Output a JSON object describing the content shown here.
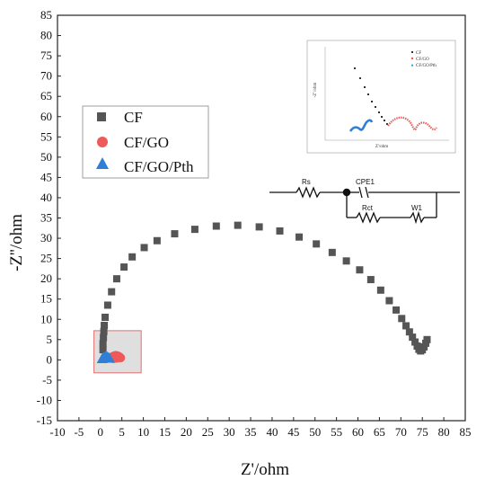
{
  "chart_data": {
    "type": "scatter",
    "xlabel": "Z'/ohm",
    "ylabel": "-Z''/ohm",
    "xlim": [
      -10,
      85
    ],
    "ylim": [
      -15,
      85
    ],
    "xticks": [
      -10,
      -5,
      0,
      5,
      10,
      15,
      20,
      25,
      30,
      35,
      40,
      45,
      50,
      55,
      60,
      65,
      70,
      75,
      80,
      85
    ],
    "yticks": [
      -15,
      -10,
      -5,
      0,
      5,
      10,
      15,
      20,
      25,
      30,
      35,
      40,
      45,
      50,
      55,
      60,
      65,
      70,
      75,
      80,
      85
    ],
    "grid": false,
    "legend_position": "left",
    "series": [
      {
        "name": "CF",
        "marker": "square",
        "color": "#555555",
        "points": [
          [
            0.6,
            2.5
          ],
          [
            0.6,
            4.0
          ],
          [
            0.7,
            5.5
          ],
          [
            0.8,
            7.0
          ],
          [
            0.9,
            8.5
          ],
          [
            1.1,
            10.5
          ],
          [
            1.7,
            13.5
          ],
          [
            2.6,
            16.8
          ],
          [
            3.8,
            20.0
          ],
          [
            5.5,
            22.9
          ],
          [
            7.4,
            25.4
          ],
          [
            10.2,
            27.7
          ],
          [
            13.2,
            29.4
          ],
          [
            17.3,
            31.1
          ],
          [
            22.0,
            32.2
          ],
          [
            27.0,
            33.0
          ],
          [
            32.0,
            33.2
          ],
          [
            37.0,
            32.8
          ],
          [
            41.8,
            31.8
          ],
          [
            46.3,
            30.3
          ],
          [
            50.3,
            28.6
          ],
          [
            54.0,
            26.5
          ],
          [
            57.3,
            24.4
          ],
          [
            60.4,
            22.2
          ],
          [
            63.0,
            19.8
          ],
          [
            65.3,
            17.2
          ],
          [
            67.3,
            14.6
          ],
          [
            68.9,
            12.3
          ],
          [
            70.2,
            10.2
          ],
          [
            71.2,
            8.4
          ],
          [
            72.0,
            6.9
          ],
          [
            72.7,
            5.6
          ],
          [
            73.3,
            4.4
          ],
          [
            73.8,
            3.4
          ],
          [
            74.2,
            2.6
          ],
          [
            74.6,
            2.2
          ],
          [
            75.0,
            2.5
          ],
          [
            75.4,
            3.2
          ],
          [
            75.8,
            4.1
          ],
          [
            76.1,
            5.0
          ]
        ]
      },
      {
        "name": "CF/GO",
        "marker": "circle",
        "color": "#ee5a5a",
        "points": [
          [
            2.4,
            0.5
          ],
          [
            2.8,
            0.8
          ],
          [
            3.2,
            1.0
          ],
          [
            3.6,
            1.1
          ],
          [
            4.0,
            1.0
          ],
          [
            4.4,
            0.8
          ],
          [
            4.7,
            0.5
          ],
          [
            3.0,
            0.3
          ],
          [
            3.8,
            0.4
          ]
        ]
      },
      {
        "name": "CF/GO/Pth",
        "marker": "triangle",
        "color": "#2f7fd6",
        "points": [
          [
            0.4,
            0.3
          ],
          [
            0.7,
            0.6
          ],
          [
            1.0,
            0.8
          ],
          [
            1.3,
            0.9
          ],
          [
            1.6,
            0.8
          ],
          [
            1.9,
            0.6
          ],
          [
            2.1,
            0.4
          ],
          [
            1.2,
            0.4
          ]
        ]
      }
    ],
    "highlight_box": {
      "x": [
        -1.5,
        9.5
      ],
      "y": [
        -3.2,
        7.2
      ]
    },
    "inset": {
      "legend": [
        "CF",
        "CF/GO",
        "CF/GO/Pth"
      ],
      "xlabel": "Z'/ohm",
      "ylabel": "-Z''/ohm"
    },
    "circuit": {
      "labels": [
        "Rs",
        "CPE1",
        "Rct",
        "W1"
      ]
    }
  }
}
